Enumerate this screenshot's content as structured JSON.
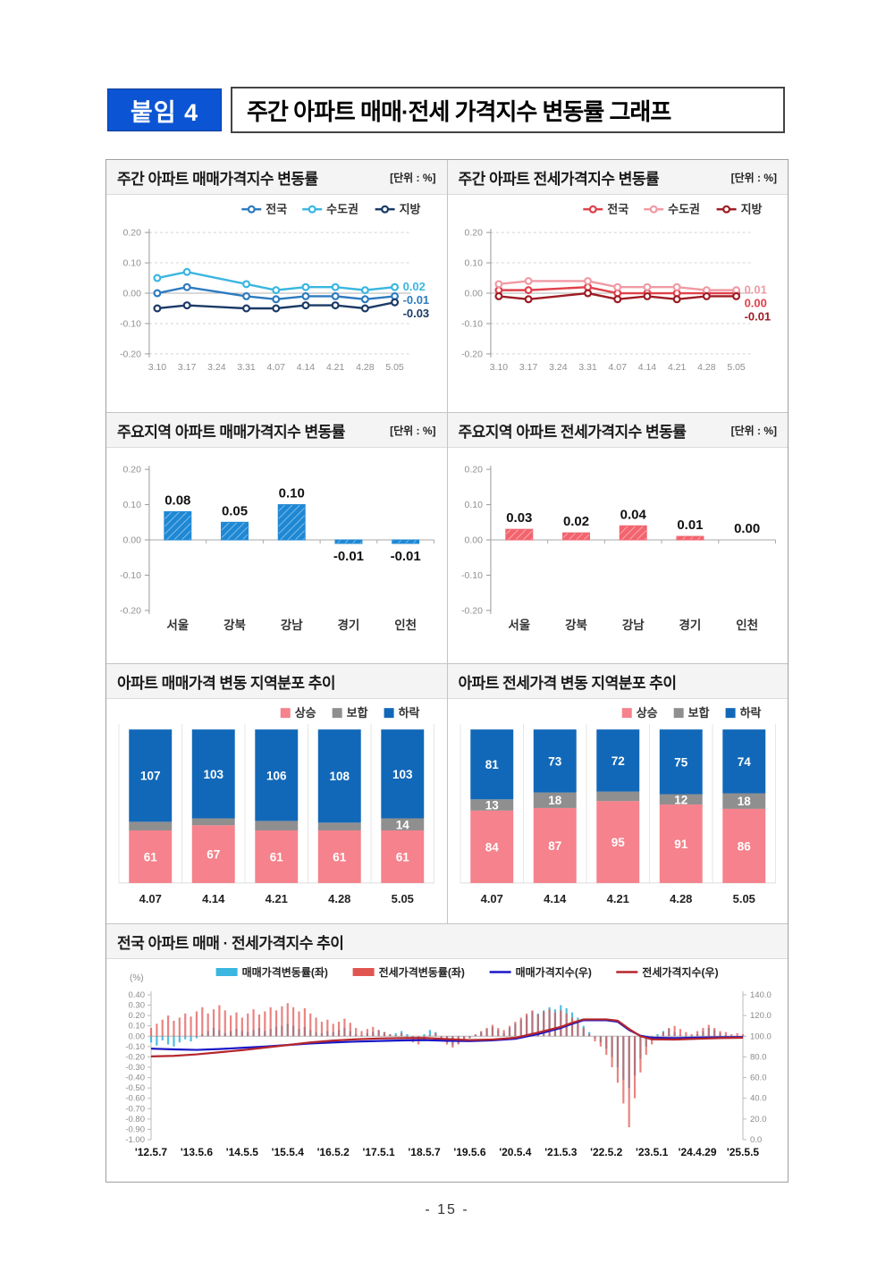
{
  "header": {
    "badge": "붙임 4",
    "title": "주간 아파트 매매·전세 가격지수 변동률 그래프"
  },
  "page_number": "- 15 -",
  "chart_data": [
    {
      "id": "sale_line",
      "type": "line",
      "title": "주간 아파트 매매가격지수 변동률",
      "unit": "[단위 : %]",
      "categories": [
        "3.10",
        "3.17",
        "3.24",
        "3.31",
        "4.07",
        "4.14",
        "4.21",
        "4.28",
        "5.05"
      ],
      "ylim": [
        -0.2,
        0.2
      ],
      "yticks": [
        "0.20",
        "0.10",
        "0.00",
        "-0.10",
        "-0.20"
      ],
      "grid": "dashed-horizontal",
      "legend_position": "top-right",
      "marker_skip": [
        2
      ],
      "series": [
        {
          "name": "전국",
          "color": "#2e7bbf",
          "end_label": "-0.01",
          "values": [
            0.0,
            0.02,
            0.005,
            -0.01,
            -0.02,
            -0.01,
            -0.01,
            -0.02,
            -0.01
          ]
        },
        {
          "name": "수도권",
          "color": "#3ab6e0",
          "end_label": "0.02",
          "values": [
            0.05,
            0.07,
            0.05,
            0.03,
            0.01,
            0.02,
            0.02,
            0.01,
            0.02
          ]
        },
        {
          "name": "지방",
          "color": "#1b3a66",
          "end_label": "-0.03",
          "values": [
            -0.05,
            -0.04,
            -0.045,
            -0.05,
            -0.05,
            -0.04,
            -0.04,
            -0.05,
            -0.03
          ]
        }
      ]
    },
    {
      "id": "jeonse_line",
      "type": "line",
      "title": "주간 아파트 전세가격지수 변동률",
      "unit": "[단위 : %]",
      "categories": [
        "3.10",
        "3.17",
        "3.24",
        "3.31",
        "4.07",
        "4.14",
        "4.21",
        "4.28",
        "5.05"
      ],
      "ylim": [
        -0.2,
        0.2
      ],
      "yticks": [
        "0.20",
        "0.10",
        "0.00",
        "-0.10",
        "-0.20"
      ],
      "grid": "dashed-horizontal",
      "legend_position": "top-right",
      "marker_skip": [
        2
      ],
      "series": [
        {
          "name": "전국",
          "color": "#e0404a",
          "end_label": "0.00",
          "values": [
            0.01,
            0.01,
            0.015,
            0.02,
            0.0,
            0.0,
            0.0,
            0.0,
            0.0
          ]
        },
        {
          "name": "수도권",
          "color": "#f09aa4",
          "end_label": "0.01",
          "values": [
            0.03,
            0.04,
            0.04,
            0.04,
            0.02,
            0.02,
            0.02,
            0.01,
            0.01
          ]
        },
        {
          "name": "지방",
          "color": "#9e1c24",
          "end_label": "-0.01",
          "values": [
            -0.01,
            -0.02,
            -0.01,
            0.0,
            -0.02,
            -0.01,
            -0.02,
            -0.01,
            -0.01
          ]
        }
      ]
    },
    {
      "id": "sale_bar",
      "type": "bar",
      "title": "주요지역 아파트 매매가격지수 변동률",
      "unit": "[단위 : %]",
      "categories": [
        "서울",
        "강북",
        "강남",
        "경기",
        "인천"
      ],
      "values": [
        0.08,
        0.05,
        0.1,
        -0.01,
        -0.01
      ],
      "labels": [
        "0.08",
        "0.05",
        "0.10",
        "-0.01",
        "-0.01"
      ],
      "bar_color": "#1e88d4",
      "ylim": [
        -0.2,
        0.2
      ],
      "yticks": [
        "0.20",
        "0.10",
        "0.00",
        "-0.10",
        "-0.20"
      ]
    },
    {
      "id": "jeonse_bar",
      "type": "bar",
      "title": "주요지역 아파트 전세가격지수 변동률",
      "unit": "[단위 : %]",
      "categories": [
        "서울",
        "강북",
        "강남",
        "경기",
        "인천"
      ],
      "values": [
        0.03,
        0.02,
        0.04,
        0.01,
        0.0
      ],
      "labels": [
        "0.03",
        "0.02",
        "0.04",
        "0.01",
        "0.00"
      ],
      "bar_color": "#f2646e",
      "ylim": [
        -0.2,
        0.2
      ],
      "yticks": [
        "0.20",
        "0.10",
        "0.00",
        "-0.10",
        "-0.20"
      ]
    },
    {
      "id": "sale_stack",
      "type": "stacked-bar",
      "title": "아파트 매매가격 변동 지역분포 추이",
      "categories": [
        "4.07",
        "4.14",
        "4.21",
        "4.28",
        "5.05"
      ],
      "legend_position": "top-right",
      "series": [
        {
          "name": "상승",
          "color": "#f5828c",
          "values": [
            61,
            67,
            61,
            61,
            61
          ]
        },
        {
          "name": "보합",
          "color": "#8f8f8f",
          "values": [
            10,
            8,
            11,
            9,
            14
          ]
        },
        {
          "name": "하락",
          "color": "#1268b8",
          "values": [
            107,
            103,
            106,
            108,
            103
          ]
        }
      ]
    },
    {
      "id": "jeonse_stack",
      "type": "stacked-bar",
      "title": "아파트 전세가격 변동 지역분포 추이",
      "categories": [
        "4.07",
        "4.14",
        "4.21",
        "4.28",
        "5.05"
      ],
      "legend_position": "top-right",
      "series": [
        {
          "name": "상승",
          "color": "#f5828c",
          "values": [
            84,
            87,
            95,
            91,
            86
          ]
        },
        {
          "name": "보합",
          "color": "#8f8f8f",
          "values": [
            13,
            18,
            11,
            12,
            18
          ]
        },
        {
          "name": "하락",
          "color": "#1268b8",
          "values": [
            81,
            73,
            72,
            75,
            74
          ]
        }
      ]
    },
    {
      "id": "trend",
      "type": "combo",
      "title": "전국 아파트 매매 · 전세가격지수 추이",
      "left_axis_unit": "(%)",
      "left_ylim": [
        -1.0,
        0.4
      ],
      "left_yticks": [
        "0.40",
        "0.30",
        "0.20",
        "0.10",
        "0.00",
        "-0.10",
        "-0.20",
        "-0.30",
        "-0.40",
        "-0.50",
        "-0.60",
        "-0.70",
        "-0.80",
        "-0.90",
        "-1.00"
      ],
      "right_ylim": [
        0,
        140
      ],
      "right_yticks": [
        "140.0",
        "120.0",
        "100.0",
        "80.0",
        "60.0",
        "40.0",
        "20.0",
        "0.0"
      ],
      "x_labels": [
        "'12.5.7",
        "'13.5.6",
        "'14.5.5",
        "'15.5.4",
        "'16.5.2",
        "'17.5.1",
        "'18.5.7",
        "'19.5.6",
        "'20.5.4",
        "'21.5.3",
        "'22.5.2",
        "'23.5.1",
        "'24.4.29",
        "'25.5.5"
      ],
      "bar_series": [
        {
          "name": "매매가격변동률(좌)",
          "color": "#3ab6e0",
          "axis": "left",
          "values": [
            -0.06,
            -0.09,
            -0.04,
            -0.08,
            -0.1,
            -0.06,
            -0.03,
            -0.05,
            -0.02,
            0.02,
            0.05,
            0.08,
            0.06,
            0.03,
            0.05,
            0.07,
            0.05,
            0.04,
            0.06,
            0.08,
            0.05,
            0.07,
            0.09,
            0.1,
            0.12,
            0.1,
            0.07,
            0.09,
            0.06,
            0.04,
            0.03,
            0.05,
            0.04,
            0.06,
            0.08,
            0.05,
            0.02,
            0.01,
            0.03,
            0.04,
            0.06,
            0.04,
            0.02,
            0.03,
            0.05,
            0.02,
            -0.02,
            -0.04,
            0.02,
            0.06,
            0.04,
            -0.02,
            -0.06,
            -0.09,
            -0.07,
            -0.04,
            -0.02,
            0.01,
            0.04,
            0.07,
            0.09,
            0.06,
            0.03,
            0.08,
            0.12,
            0.16,
            0.2,
            0.24,
            0.22,
            0.25,
            0.28,
            0.26,
            0.3,
            0.27,
            0.23,
            0.18,
            0.1,
            0.04,
            -0.02,
            -0.06,
            -0.12,
            -0.2,
            -0.3,
            -0.42,
            -0.5,
            -0.38,
            -0.22,
            -0.1,
            -0.04,
            0.02,
            0.05,
            0.07,
            0.04,
            0.01,
            -0.02,
            -0.03,
            0.02,
            0.05,
            0.08,
            0.06,
            0.03,
            0.01,
            -0.01,
            0.0,
            -0.01
          ]
        },
        {
          "name": "전세가격변동률(좌)",
          "color": "#e05550",
          "axis": "left",
          "values": [
            0.08,
            0.12,
            0.16,
            0.2,
            0.15,
            0.18,
            0.22,
            0.19,
            0.24,
            0.28,
            0.22,
            0.26,
            0.3,
            0.25,
            0.2,
            0.23,
            0.18,
            0.22,
            0.26,
            0.21,
            0.24,
            0.28,
            0.25,
            0.29,
            0.32,
            0.28,
            0.24,
            0.27,
            0.22,
            0.18,
            0.14,
            0.16,
            0.12,
            0.14,
            0.17,
            0.13,
            0.08,
            0.05,
            0.07,
            0.09,
            0.06,
            0.04,
            0.02,
            0.01,
            0.03,
            -0.02,
            -0.06,
            -0.08,
            -0.04,
            0.01,
            0.03,
            -0.03,
            -0.08,
            -0.11,
            -0.08,
            -0.05,
            -0.02,
            0.02,
            0.05,
            0.08,
            0.11,
            0.08,
            0.06,
            0.1,
            0.14,
            0.18,
            0.22,
            0.25,
            0.21,
            0.24,
            0.26,
            0.23,
            0.25,
            0.22,
            0.18,
            0.14,
            0.08,
            0.02,
            -0.05,
            -0.1,
            -0.18,
            -0.3,
            -0.45,
            -0.65,
            -0.88,
            -0.6,
            -0.35,
            -0.18,
            -0.08,
            -0.02,
            0.04,
            0.08,
            0.1,
            0.07,
            0.04,
            0.02,
            0.05,
            0.08,
            0.11,
            0.08,
            0.05,
            0.04,
            0.02,
            0.03,
            0.02
          ]
        }
      ],
      "line_series": [
        {
          "name": "매매가격지수(우)",
          "color": "#1a17c8",
          "axis": "right",
          "points": [
            [
              0,
              88
            ],
            [
              4,
              87.3
            ],
            [
              8,
              86.8
            ],
            [
              12,
              87.6
            ],
            [
              16,
              88.8
            ],
            [
              20,
              90
            ],
            [
              24,
              91.5
            ],
            [
              28,
              93
            ],
            [
              32,
              94
            ],
            [
              36,
              94.8
            ],
            [
              40,
              95.4
            ],
            [
              44,
              95.9
            ],
            [
              48,
              96.2
            ],
            [
              52,
              95.6
            ],
            [
              56,
              95.3
            ],
            [
              60,
              96
            ],
            [
              64,
              97.5
            ],
            [
              68,
              102
            ],
            [
              72,
              108
            ],
            [
              74,
              112
            ],
            [
              76,
              115.5
            ],
            [
              80,
              115.5
            ],
            [
              82,
              114
            ],
            [
              84,
              106
            ],
            [
              86,
              100.5
            ],
            [
              88,
              98.5
            ],
            [
              92,
              98.2
            ],
            [
              96,
              98.6
            ],
            [
              100,
              99
            ],
            [
              104,
              99.2
            ]
          ]
        },
        {
          "name": "전세가격지수(우)",
          "color": "#b5262c",
          "axis": "right",
          "points": [
            [
              0,
              80.5
            ],
            [
              4,
              81
            ],
            [
              8,
              82.5
            ],
            [
              12,
              84.5
            ],
            [
              16,
              86.5
            ],
            [
              20,
              89
            ],
            [
              24,
              91.5
            ],
            [
              28,
              94
            ],
            [
              32,
              95.8
            ],
            [
              36,
              97
            ],
            [
              40,
              97.8
            ],
            [
              44,
              98.2
            ],
            [
              48,
              98.3
            ],
            [
              52,
              97.2
            ],
            [
              56,
              96.3
            ],
            [
              60,
              96.8
            ],
            [
              64,
              98.5
            ],
            [
              68,
              103.5
            ],
            [
              72,
              109
            ],
            [
              74,
              113
            ],
            [
              76,
              116.3
            ],
            [
              80,
              116.3
            ],
            [
              82,
              115
            ],
            [
              84,
              107
            ],
            [
              86,
              100
            ],
            [
              88,
              97
            ],
            [
              92,
              96.8
            ],
            [
              96,
              97.5
            ],
            [
              100,
              98.2
            ],
            [
              104,
              98.5
            ]
          ]
        }
      ]
    }
  ]
}
